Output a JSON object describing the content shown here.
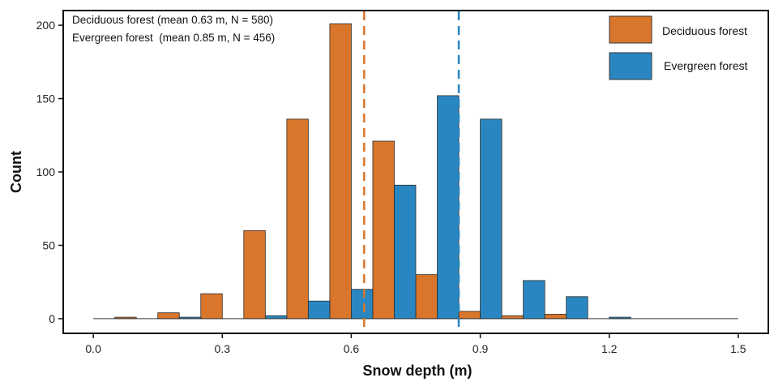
{
  "chart_data": {
    "type": "bar",
    "title": "",
    "xlabel": "Snow depth (m)",
    "ylabel": "Count",
    "xlim": [
      -0.07,
      1.57
    ],
    "ylim": [
      -10,
      210
    ],
    "xticks": [
      0.0,
      0.3,
      0.6,
      0.9,
      1.2,
      1.5
    ],
    "xtick_labels": [
      "0.0",
      "0.3",
      "0.6",
      "0.9",
      "1.2",
      "1.5"
    ],
    "yticks": [
      0,
      50,
      100,
      150,
      200
    ],
    "ytick_labels": [
      "0",
      "50",
      "100",
      "150",
      "200"
    ],
    "grid": false,
    "legend_position": "top-right",
    "bin_width": 0.1,
    "bin_centers": [
      0.0,
      0.1,
      0.2,
      0.3,
      0.4,
      0.5,
      0.6,
      0.7,
      0.8,
      0.9,
      1.0,
      1.1,
      1.2,
      1.3,
      1.4,
      1.5
    ],
    "series": [
      {
        "name": "Deciduous forest",
        "color": "#D9762B",
        "offset": -0.025,
        "values": [
          0,
          1,
          4,
          17,
          60,
          136,
          201,
          121,
          30,
          5,
          2,
          3,
          0,
          0,
          0,
          0
        ],
        "mean": 0.63
      },
      {
        "name": "Evergreen forest",
        "color": "#2A86C0",
        "offset": 0.025,
        "values": [
          0,
          0,
          1,
          0,
          2,
          12,
          20,
          91,
          152,
          136,
          26,
          15,
          1,
          0,
          0,
          0
        ],
        "mean": 0.85
      }
    ],
    "annotations": [
      "Deciduous forest (mean 0.63 m, N = 580)",
      "Evergreen forest  (mean 0.85 m, N = 456)"
    ]
  }
}
